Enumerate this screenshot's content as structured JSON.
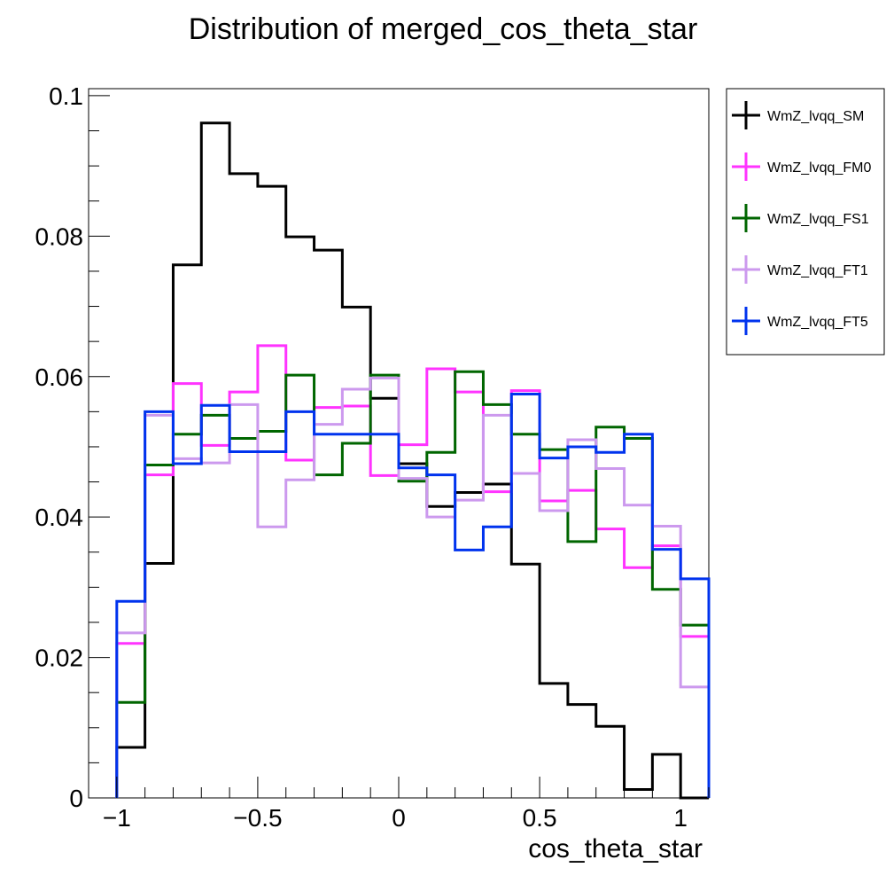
{
  "chart_data": {
    "type": "line",
    "title": "Distribution of merged_cos_theta_star",
    "xlabel": "cos_theta_star",
    "ylabel": "",
    "xlim": [
      -1.1,
      1.1
    ],
    "ylim": [
      0,
      0.101
    ],
    "bin_edges": [
      -1.0,
      -0.9,
      -0.8,
      -0.7,
      -0.6,
      -0.5,
      -0.4,
      -0.3,
      -0.2,
      -0.1,
      0.0,
      0.1,
      0.2,
      0.3,
      0.4,
      0.5,
      0.6,
      0.7,
      0.8,
      0.9,
      1.0,
      1.1
    ],
    "x_ticks": [
      {
        "value": -1,
        "label": "−1"
      },
      {
        "value": -0.5,
        "label": "−0.5"
      },
      {
        "value": 0,
        "label": "0"
      },
      {
        "value": 0.5,
        "label": "0.5"
      },
      {
        "value": 1,
        "label": "1"
      }
    ],
    "y_ticks": [
      {
        "value": 0,
        "label": "0"
      },
      {
        "value": 0.02,
        "label": "0.02"
      },
      {
        "value": 0.04,
        "label": "0.04"
      },
      {
        "value": 0.06,
        "label": "0.06"
      },
      {
        "value": 0.08,
        "label": "0.08"
      },
      {
        "value": 0.1,
        "label": "0.1"
      }
    ],
    "grid": false,
    "legend_position": "top-right-outside",
    "series": [
      {
        "name": "WmZ_lvqq_SM",
        "color": "#000000",
        "values": [
          0.0072,
          0.0334,
          0.0759,
          0.0961,
          0.0889,
          0.0871,
          0.0799,
          0.078,
          0.0699,
          0.0569,
          0.0476,
          0.0415,
          0.0435,
          0.0447,
          0.0333,
          0.0163,
          0.0133,
          0.0102,
          0.0012,
          0.0062,
          0.0
        ]
      },
      {
        "name": "WmZ_lvqq_FM0",
        "color": "#ff33ff",
        "values": [
          0.022,
          0.046,
          0.059,
          0.0502,
          0.0578,
          0.0644,
          0.0481,
          0.0556,
          0.0558,
          0.0459,
          0.0503,
          0.0611,
          0.0578,
          0.0436,
          0.058,
          0.0423,
          0.0438,
          0.0383,
          0.0328,
          0.0359,
          0.023
        ]
      },
      {
        "name": "WmZ_lvqq_FS1",
        "color": "#006600",
        "values": [
          0.0136,
          0.0474,
          0.0518,
          0.0545,
          0.0512,
          0.0522,
          0.0602,
          0.046,
          0.0505,
          0.0602,
          0.0451,
          0.0492,
          0.0607,
          0.056,
          0.0518,
          0.0496,
          0.0365,
          0.0528,
          0.0512,
          0.0297,
          0.0246
        ]
      },
      {
        "name": "WmZ_lvqq_FT1",
        "color": "#cc99ee",
        "values": [
          0.0235,
          0.0545,
          0.0483,
          0.0477,
          0.056,
          0.0386,
          0.0453,
          0.0532,
          0.0582,
          0.0598,
          0.0455,
          0.04,
          0.0424,
          0.0545,
          0.0462,
          0.0409,
          0.051,
          0.0469,
          0.0417,
          0.0387,
          0.0158
        ]
      },
      {
        "name": "WmZ_lvqq_FT5",
        "color": "#0033ee",
        "values": [
          0.028,
          0.055,
          0.0476,
          0.0559,
          0.0493,
          0.0493,
          0.055,
          0.0518,
          0.0518,
          0.0518,
          0.047,
          0.046,
          0.0353,
          0.0386,
          0.0575,
          0.0484,
          0.05,
          0.0492,
          0.0518,
          0.0354,
          0.0312
        ]
      }
    ]
  }
}
